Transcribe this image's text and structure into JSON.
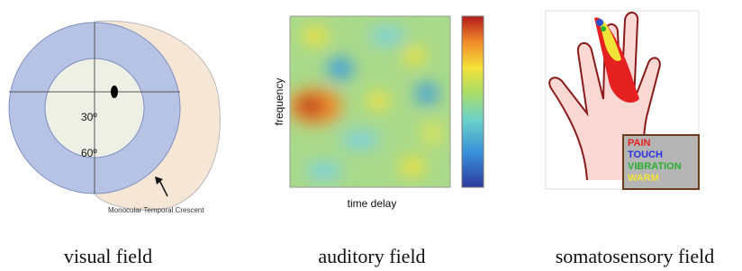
{
  "visual_field": {
    "inner_label": "30º",
    "outer_label": "60º",
    "annotation": "Monocular Temporal Crescent",
    "caption": "visual field"
  },
  "auditory_field": {
    "y_label": "frequency",
    "x_label": "time delay",
    "caption": "auditory field"
  },
  "somatosensory_field": {
    "legend": [
      "PAIN",
      "TOUCH",
      "VIBRATION",
      "WARM"
    ],
    "caption": "somatosensory field"
  }
}
